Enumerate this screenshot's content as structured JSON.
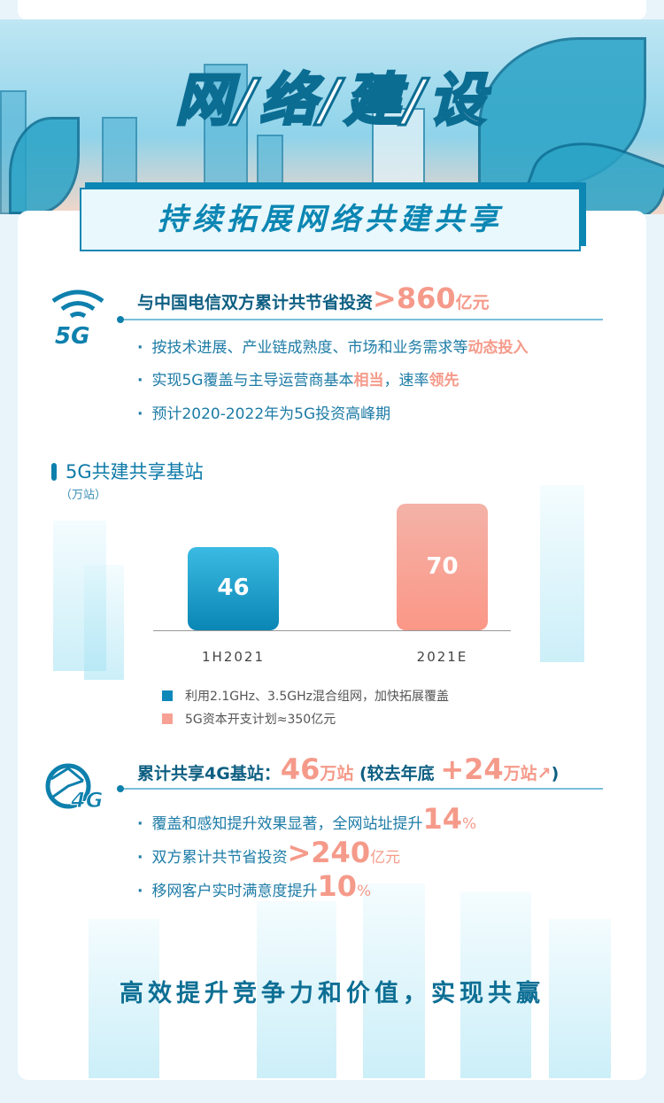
{
  "banner": {
    "title": "网/络/建/设",
    "subtitle": "持续拓展网络共建共享"
  },
  "section5g": {
    "icon": "5g-signal-icon",
    "icon_label": "5G",
    "headline_prefix": "与中国电信双方累计共节省投资",
    "headline_value": ">860",
    "headline_unit": "亿元",
    "bullets": [
      {
        "text": "按技术进展、产业链成熟度、市场和业务需求等",
        "highlight": "动态投入"
      },
      {
        "text": "实现5G覆盖与主导运营商基本",
        "highlight": "相当",
        "text2": "，速率",
        "highlight2": "领先"
      },
      {
        "text": "预计2020-2022年为5G投资高峰期"
      }
    ]
  },
  "chart_data": {
    "type": "bar",
    "title": "5G共建共享基站",
    "ylabel": "（万站）",
    "categories": [
      "1H2021",
      "2021E"
    ],
    "values": [
      46,
      70
    ],
    "ylim": [
      0,
      75
    ],
    "grid": false,
    "colors": [
      "#0e88b8",
      "#f7a194"
    ],
    "legend": [
      {
        "label": "利用2.1GHz、3.5GHz混合组网，加快拓展覆盖",
        "color": "#0e88b8"
      },
      {
        "label": "5G资本开支计划≈350亿元",
        "color": "#f7a194"
      }
    ],
    "legend_position": "bottom"
  },
  "section4g": {
    "icon": "4g-globe-icon",
    "icon_label": "4G",
    "headline_prefix": "累计共享4G基站：",
    "headline_value": "46",
    "headline_unit": "万站",
    "paren_open": "(较去年底",
    "delta": "+24",
    "delta_unit": "万站",
    "arrow": "↗",
    "paren_close": ")",
    "bullets": [
      {
        "text": "覆盖和感知提升效果显著，全网站址提升",
        "value": "14",
        "unit": "%"
      },
      {
        "text": "双方累计共节省投资",
        "value": ">240",
        "unit": "亿元"
      },
      {
        "text": "移网客户实时满意度提升",
        "value": "10",
        "unit": "%"
      }
    ]
  },
  "footer": "高效提升竞争力和价值，实现共赢"
}
